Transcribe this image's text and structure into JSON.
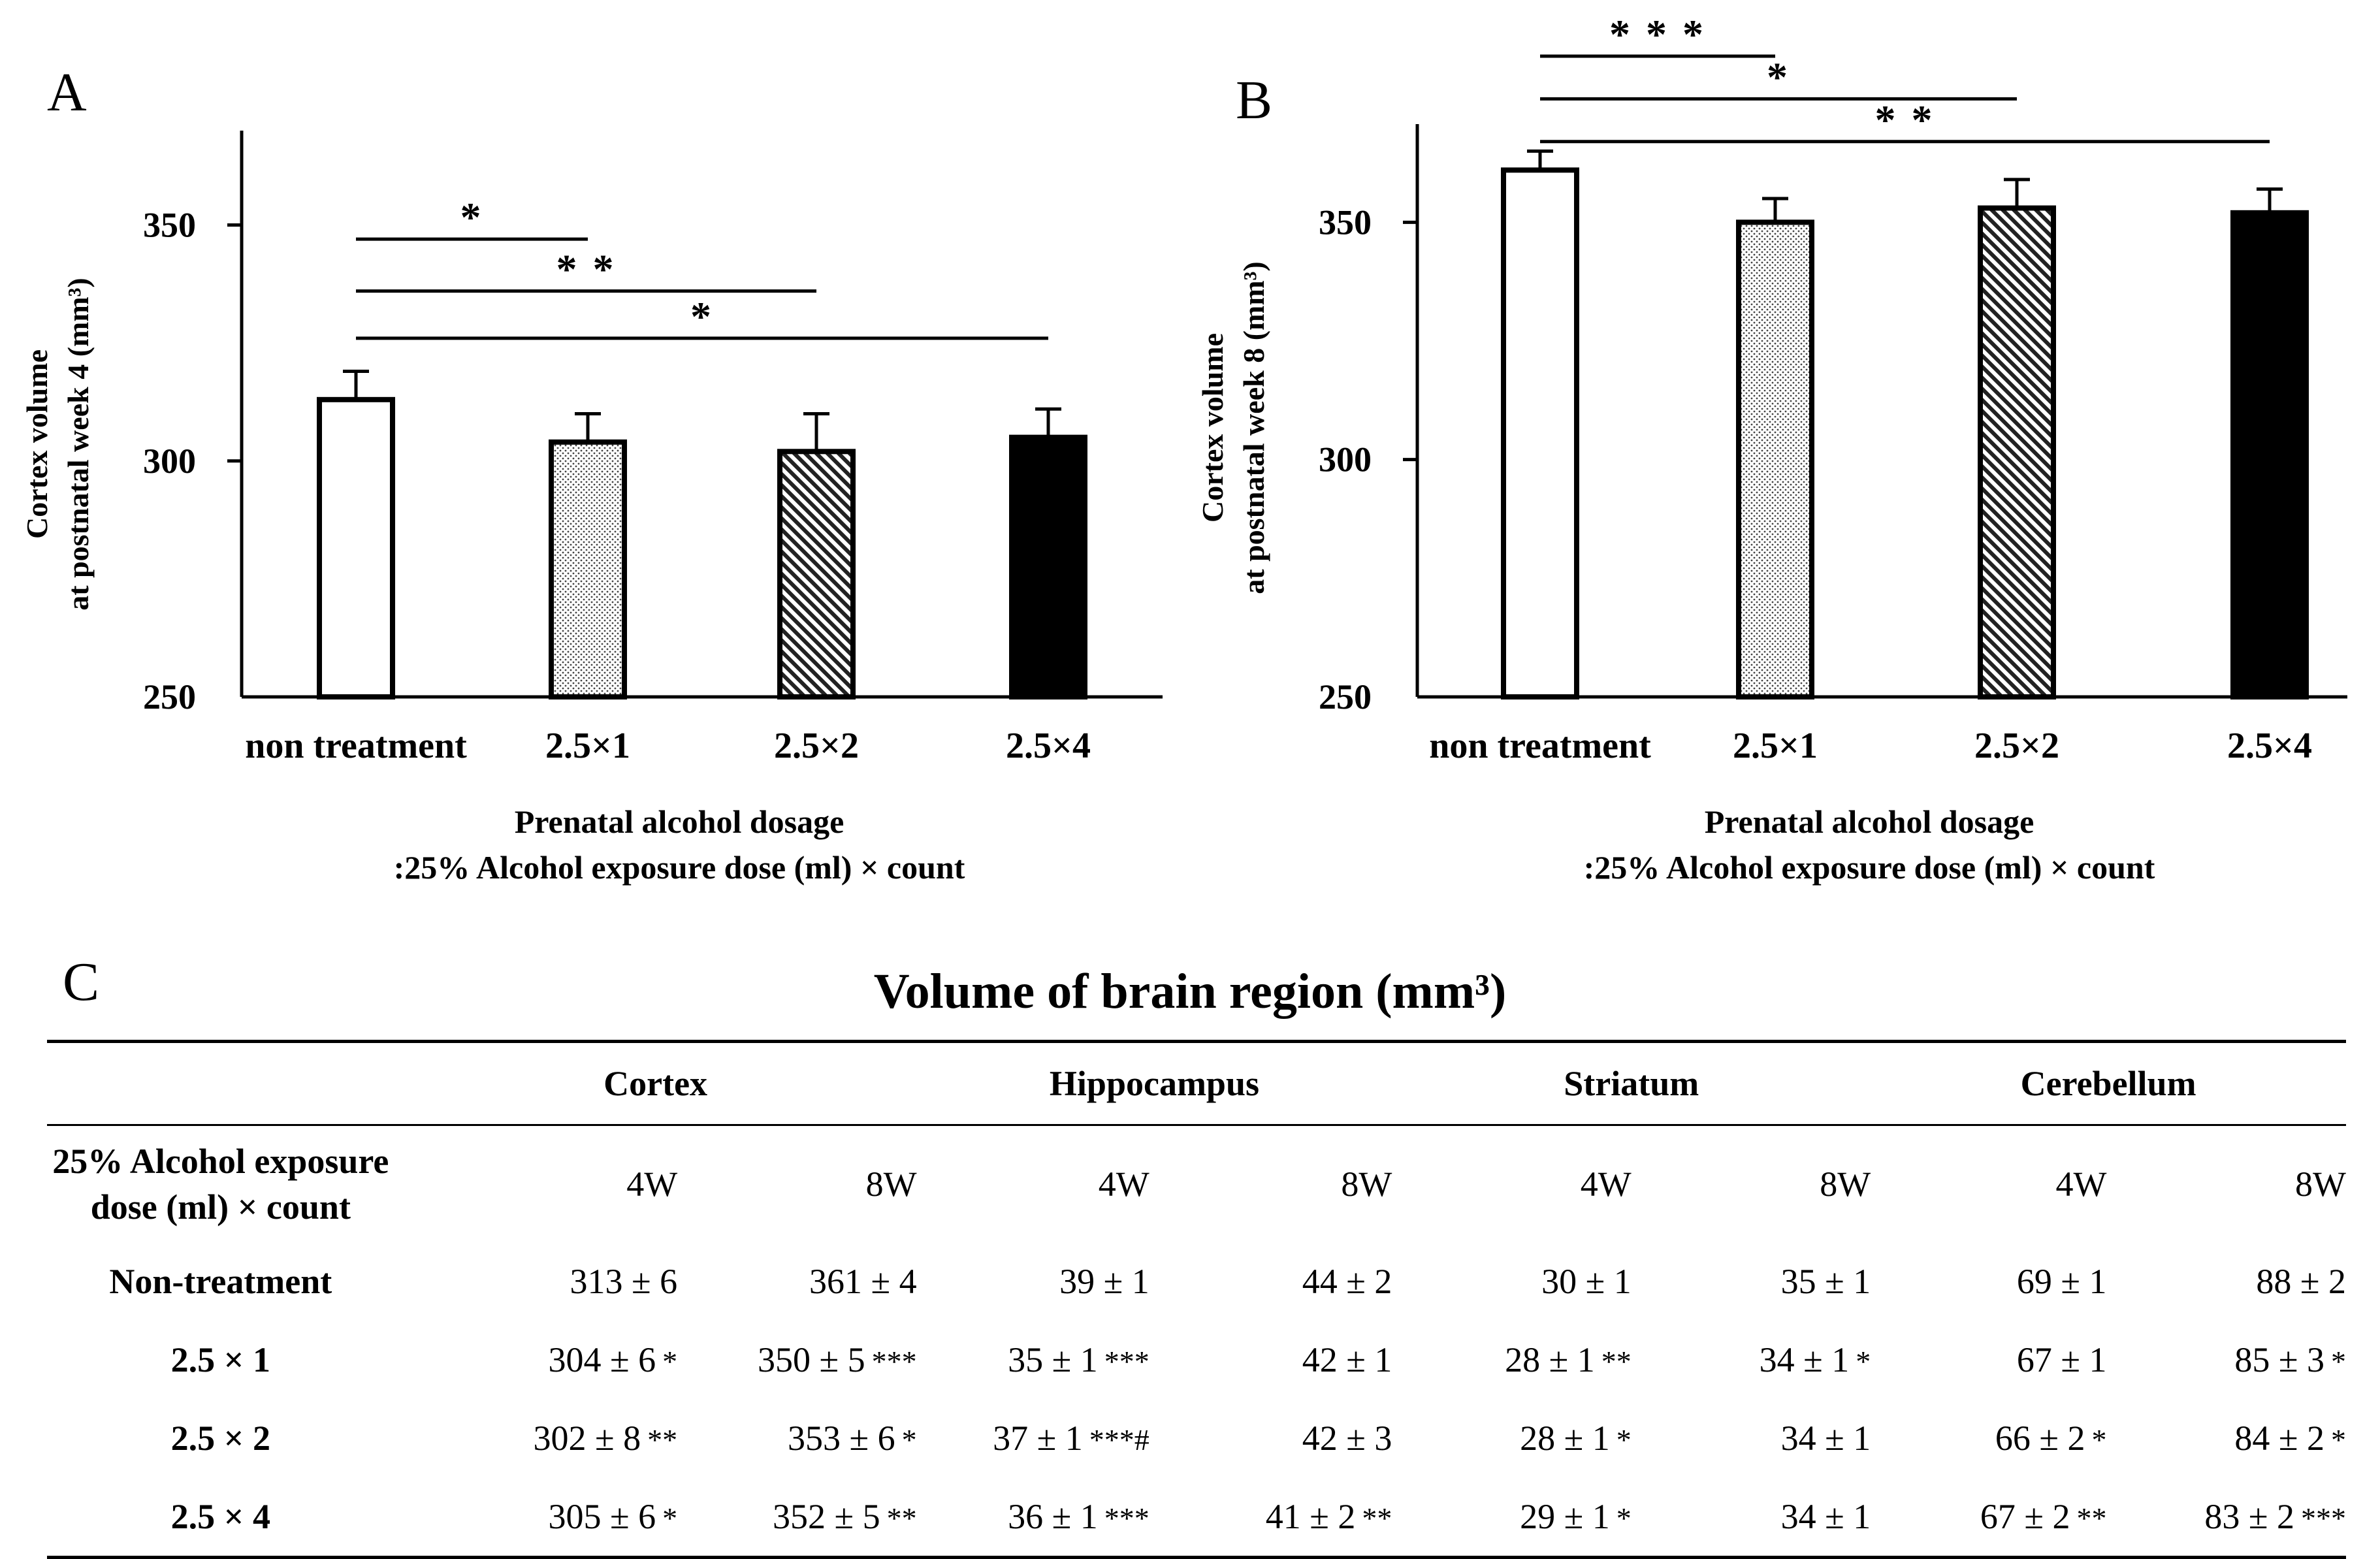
{
  "panels": {
    "a": "A",
    "b": "B",
    "c": "C"
  },
  "chart_data": [
    {
      "id": "A",
      "type": "bar",
      "categories": [
        "non treatment",
        "2.5×1",
        "2.5×2",
        "2.5×4"
      ],
      "values": [
        313,
        304,
        302,
        305
      ],
      "errors": [
        6,
        6,
        8,
        6
      ],
      "ylim": [
        250,
        370
      ],
      "yticks": [
        "250",
        "300",
        "350"
      ],
      "ylabel_line1": "Cortex volume",
      "ylabel_line2": "at postnatal week 4 (mm³)",
      "xlabel_line1": "Prenatal alcohol dosage",
      "xlabel_line2": ":25% Alcohol exposure dose (ml) × count",
      "fills": [
        "white",
        "dots",
        "hatch",
        "black"
      ],
      "significance": [
        {
          "from": 0,
          "to": 1,
          "y": 347,
          "label": "*"
        },
        {
          "from": 0,
          "to": 2,
          "y": 336,
          "label": "* *"
        },
        {
          "from": 0,
          "to": 3,
          "y": 326,
          "label": "*"
        }
      ]
    },
    {
      "id": "B",
      "type": "bar",
      "categories": [
        "non treatment",
        "2.5×1",
        "2.5×2",
        "2.5×4"
      ],
      "values": [
        361,
        350,
        353,
        352
      ],
      "errors": [
        4,
        5,
        6,
        5
      ],
      "ylim": [
        250,
        370
      ],
      "yticks": [
        "250",
        "300",
        "350"
      ],
      "ylabel_line1": "Cortex volume",
      "ylabel_line2": "at postnatal week 8 (mm³)",
      "xlabel_line1": "Prenatal alcohol dosage",
      "xlabel_line2": ":25% Alcohol exposure dose (ml) × count",
      "fills": [
        "white",
        "dots",
        "hatch",
        "black"
      ],
      "significance": [
        {
          "from": 0,
          "to": 1,
          "y": 385,
          "label": "* * *"
        },
        {
          "from": 0,
          "to": 2,
          "y": 376,
          "label": "*"
        },
        {
          "from": 0,
          "to": 3,
          "y": 367,
          "label": "* *"
        }
      ]
    }
  ],
  "table": {
    "title": "Volume of brain region (mm³)",
    "dose_label_line1": "25%  Alcohol exposure",
    "dose_label_line2": "dose (ml) × count",
    "regions": [
      "Cortex",
      "Hippocampus",
      "Striatum",
      "Cerebellum"
    ],
    "weeks": [
      "4W",
      "8W",
      "4W",
      "8W",
      "4W",
      "8W",
      "4W",
      "8W"
    ],
    "rows": [
      {
        "label": "Non-treatment",
        "cells": [
          {
            "v": "313 ± 6",
            "s": ""
          },
          {
            "v": "361 ± 4",
            "s": ""
          },
          {
            "v": "39 ± 1",
            "s": ""
          },
          {
            "v": "44 ± 2",
            "s": ""
          },
          {
            "v": "30 ± 1",
            "s": ""
          },
          {
            "v": "35 ± 1",
            "s": ""
          },
          {
            "v": "69 ± 1",
            "s": ""
          },
          {
            "v": "88 ± 2",
            "s": ""
          }
        ]
      },
      {
        "label": "2.5 × 1",
        "cells": [
          {
            "v": "304  ±  6",
            "s": "*"
          },
          {
            "v": "350 ± 5",
            "s": "***"
          },
          {
            "v": "35 ± 1",
            "s": "***"
          },
          {
            "v": "42 ± 1",
            "s": ""
          },
          {
            "v": "28 ± 1",
            "s": "**"
          },
          {
            "v": "34 ± 1",
            "s": "*"
          },
          {
            "v": "67 ± 1",
            "s": ""
          },
          {
            "v": "85 ± 3",
            "s": "*"
          }
        ]
      },
      {
        "label": "2.5 × 2",
        "cells": [
          {
            "v": "302  ±  8",
            "s": "**"
          },
          {
            "v": "353 ± 6",
            "s": "*"
          },
          {
            "v": "37 ± 1",
            "s": "***#"
          },
          {
            "v": "42 ± 3",
            "s": ""
          },
          {
            "v": "28 ± 1",
            "s": "*"
          },
          {
            "v": "34 ± 1",
            "s": ""
          },
          {
            "v": "66 ± 2",
            "s": "*"
          },
          {
            "v": "84 ± 2",
            "s": "*"
          }
        ]
      },
      {
        "label": "2.5 × 4",
        "cells": [
          {
            "v": "305  ±  6",
            "s": "*"
          },
          {
            "v": "352 ± 5",
            "s": "**"
          },
          {
            "v": "36 ± 1",
            "s": "***"
          },
          {
            "v": "41 ± 2",
            "s": "**"
          },
          {
            "v": "29 ± 1",
            "s": "*"
          },
          {
            "v": "34 ± 1",
            "s": ""
          },
          {
            "v": "67 ± 2",
            "s": "**"
          },
          {
            "v": "83 ± 2",
            "s": "***"
          }
        ]
      }
    ]
  }
}
